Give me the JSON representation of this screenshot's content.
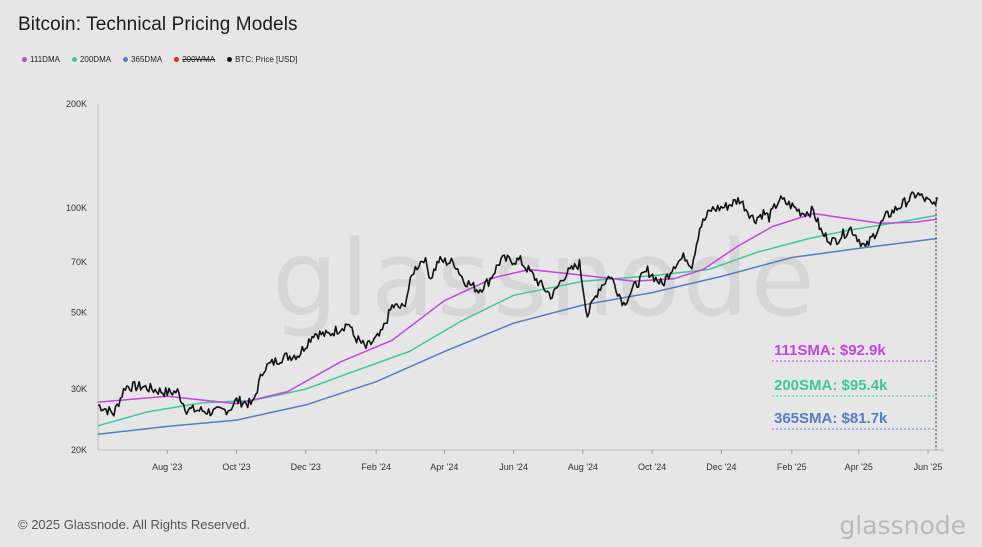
{
  "header": {
    "title": "Bitcoin: Technical Pricing Models"
  },
  "legend": [
    {
      "label": "111DMA",
      "color": "#c545e0",
      "strike": false
    },
    {
      "label": "200DMA",
      "color": "#3ec89a",
      "strike": false
    },
    {
      "label": "365DMA",
      "color": "#4f7fc9",
      "strike": false
    },
    {
      "label": "200WMA",
      "color": "#e8261f",
      "strike": true
    },
    {
      "label": "BTC: Price [USD]",
      "color": "#111111",
      "strike": false
    }
  ],
  "watermark": "glassnode",
  "footer": {
    "copyright": "© 2025 Glassnode. All Rights Reserved.",
    "logo": "glassnode"
  },
  "chart_data": {
    "type": "line",
    "title": "Bitcoin: Technical Pricing Models",
    "y_scale": "log",
    "ylim": [
      20000,
      200000
    ],
    "y_ticks": [
      20000,
      30000,
      50000,
      70000,
      100000,
      200000
    ],
    "y_tick_labels": [
      "20K",
      "30K",
      "50K",
      "70K",
      "100K",
      "200K"
    ],
    "x_range": [
      "2023-06-01",
      "2025-06-08"
    ],
    "x_ticks": [
      "2023-08-01",
      "2023-10-01",
      "2023-12-01",
      "2024-02-01",
      "2024-04-01",
      "2024-06-01",
      "2024-08-01",
      "2024-10-01",
      "2024-12-01",
      "2025-02-01",
      "2025-04-01",
      "2025-06-01"
    ],
    "x_tick_labels": [
      "Aug '23",
      "Oct '23",
      "Dec '23",
      "Feb '24",
      "Apr '24",
      "Jun '24",
      "Aug '24",
      "Oct '24",
      "Dec '24",
      "Feb '25",
      "Apr '25",
      "Jun '25"
    ],
    "grid": false,
    "legend_position": "top-left",
    "series": [
      {
        "name": "BTC: Price [USD]",
        "color": "#111111",
        "points": [
          [
            "2023-06-01",
            27000
          ],
          [
            "2023-06-15",
            25500
          ],
          [
            "2023-06-25",
            30500
          ],
          [
            "2023-07-10",
            30500
          ],
          [
            "2023-07-20",
            29900
          ],
          [
            "2023-08-01",
            29300
          ],
          [
            "2023-08-10",
            29500
          ],
          [
            "2023-08-18",
            26200
          ],
          [
            "2023-09-01",
            26000
          ],
          [
            "2023-09-12",
            25700
          ],
          [
            "2023-09-25",
            26300
          ],
          [
            "2023-10-01",
            27800
          ],
          [
            "2023-10-15",
            27100
          ],
          [
            "2023-10-25",
            34500
          ],
          [
            "2023-11-10",
            37000
          ],
          [
            "2023-11-25",
            37800
          ],
          [
            "2023-12-08",
            43500
          ],
          [
            "2023-12-20",
            43000
          ],
          [
            "2024-01-08",
            46500
          ],
          [
            "2024-01-12",
            42800
          ],
          [
            "2024-01-23",
            39500
          ],
          [
            "2024-02-05",
            43000
          ],
          [
            "2024-02-15",
            52000
          ],
          [
            "2024-02-25",
            51500
          ],
          [
            "2024-03-05",
            66000
          ],
          [
            "2024-03-14",
            72000
          ],
          [
            "2024-03-20",
            63000
          ],
          [
            "2024-03-27",
            70500
          ],
          [
            "2024-04-10",
            69500
          ],
          [
            "2024-04-18",
            62000
          ],
          [
            "2024-05-01",
            58000
          ],
          [
            "2024-05-10",
            61500
          ],
          [
            "2024-05-21",
            71000
          ],
          [
            "2024-06-07",
            70500
          ],
          [
            "2024-06-24",
            60500
          ],
          [
            "2024-07-05",
            55500
          ],
          [
            "2024-07-15",
            63500
          ],
          [
            "2024-07-29",
            69000
          ],
          [
            "2024-08-05",
            49000
          ],
          [
            "2024-08-15",
            58500
          ],
          [
            "2024-08-25",
            64000
          ],
          [
            "2024-09-06",
            53000
          ],
          [
            "2024-09-15",
            59000
          ],
          [
            "2024-09-27",
            66000
          ],
          [
            "2024-10-10",
            60000
          ],
          [
            "2024-10-20",
            68500
          ],
          [
            "2024-10-30",
            72500
          ],
          [
            "2024-11-05",
            68500
          ],
          [
            "2024-11-12",
            88000
          ],
          [
            "2024-11-22",
            99000
          ],
          [
            "2024-12-05",
            101000
          ],
          [
            "2024-12-17",
            106000
          ],
          [
            "2024-12-30",
            92500
          ],
          [
            "2025-01-07",
            97000
          ],
          [
            "2025-01-12",
            94000
          ],
          [
            "2025-01-21",
            106000
          ],
          [
            "2025-01-31",
            102000
          ],
          [
            "2025-02-10",
            97000
          ],
          [
            "2025-02-20",
            98000
          ],
          [
            "2025-02-28",
            84000
          ],
          [
            "2025-03-10",
            80000
          ],
          [
            "2025-03-25",
            87500
          ],
          [
            "2025-04-07",
            76500
          ],
          [
            "2025-04-15",
            84500
          ],
          [
            "2025-04-25",
            94500
          ],
          [
            "2025-05-10",
            103000
          ],
          [
            "2025-05-22",
            110000
          ],
          [
            "2025-06-01",
            104500
          ],
          [
            "2025-06-05",
            101500
          ],
          [
            "2025-06-09",
            107500
          ]
        ]
      },
      {
        "name": "111DMA",
        "color": "#c545e0",
        "points": [
          [
            "2023-06-01",
            27500
          ],
          [
            "2023-08-01",
            28600
          ],
          [
            "2023-10-01",
            27200
          ],
          [
            "2023-11-15",
            29500
          ],
          [
            "2024-01-01",
            36000
          ],
          [
            "2024-02-15",
            41500
          ],
          [
            "2024-04-01",
            54000
          ],
          [
            "2024-05-15",
            63000
          ],
          [
            "2024-06-15",
            66500
          ],
          [
            "2024-08-01",
            64000
          ],
          [
            "2024-09-15",
            61500
          ],
          [
            "2024-10-20",
            62500
          ],
          [
            "2024-11-15",
            66500
          ],
          [
            "2024-12-15",
            77500
          ],
          [
            "2025-01-15",
            88500
          ],
          [
            "2025-02-20",
            96500
          ],
          [
            "2025-03-20",
            93500
          ],
          [
            "2025-04-20",
            90500
          ],
          [
            "2025-05-20",
            91000
          ],
          [
            "2025-06-09",
            92900
          ]
        ]
      },
      {
        "name": "200DMA",
        "color": "#3ec89a",
        "points": [
          [
            "2023-06-01",
            23500
          ],
          [
            "2023-07-15",
            25800
          ],
          [
            "2023-09-01",
            27400
          ],
          [
            "2023-10-15",
            27800
          ],
          [
            "2023-12-01",
            30000
          ],
          [
            "2024-01-15",
            34000
          ],
          [
            "2024-03-01",
            38500
          ],
          [
            "2024-04-15",
            47000
          ],
          [
            "2024-06-01",
            56000
          ],
          [
            "2024-08-01",
            61500
          ],
          [
            "2024-10-01",
            63800
          ],
          [
            "2024-11-20",
            66500
          ],
          [
            "2025-01-01",
            74500
          ],
          [
            "2025-02-15",
            81500
          ],
          [
            "2025-03-20",
            86000
          ],
          [
            "2025-05-01",
            90500
          ],
          [
            "2025-06-09",
            95400
          ]
        ]
      },
      {
        "name": "365DMA",
        "color": "#4f7fc9",
        "points": [
          [
            "2023-06-01",
            22200
          ],
          [
            "2023-08-01",
            23400
          ],
          [
            "2023-10-01",
            24400
          ],
          [
            "2023-12-01",
            27000
          ],
          [
            "2024-02-01",
            31500
          ],
          [
            "2024-04-01",
            38500
          ],
          [
            "2024-06-01",
            46500
          ],
          [
            "2024-08-01",
            52500
          ],
          [
            "2024-10-01",
            57000
          ],
          [
            "2024-12-01",
            63500
          ],
          [
            "2025-02-01",
            72000
          ],
          [
            "2025-04-01",
            76500
          ],
          [
            "2025-06-09",
            81700
          ]
        ]
      }
    ],
    "annotations": [
      {
        "text": "111SMA: $92.9k",
        "color": "#c545e0"
      },
      {
        "text": "200SMA: $95.4k",
        "color": "#3ec89a"
      },
      {
        "text": "365SMA: $81.7k",
        "color": "#4f7fc9"
      }
    ]
  }
}
